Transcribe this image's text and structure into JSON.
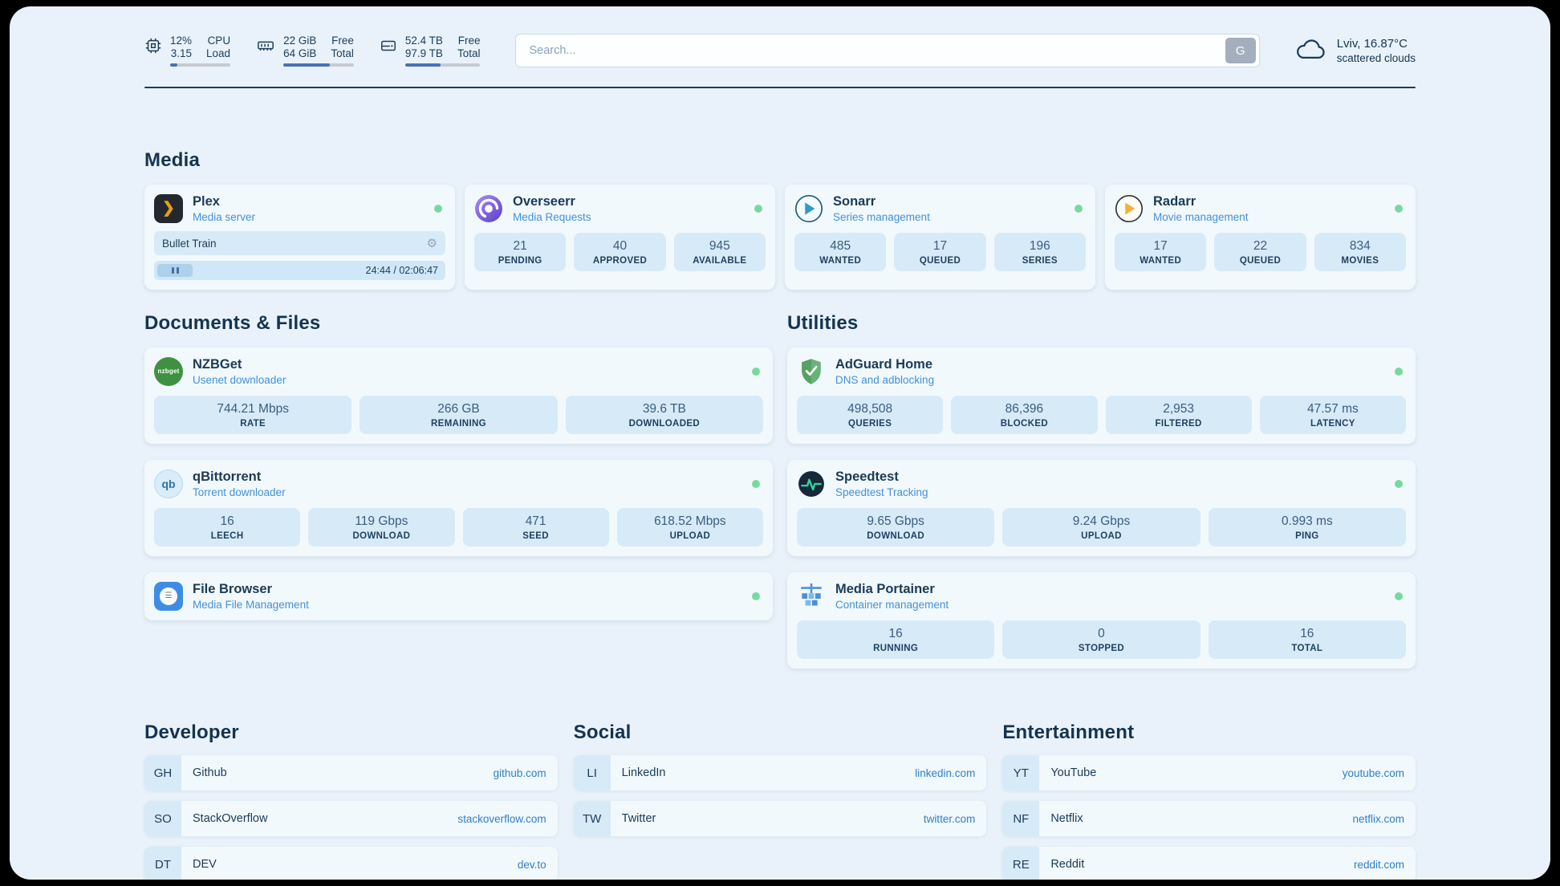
{
  "topbar": {
    "system": [
      {
        "icon": "cpu-icon",
        "rows": [
          {
            "value": "12%",
            "label": "CPU"
          },
          {
            "value": "3.15",
            "label": "Load"
          }
        ],
        "bar_percent": 12
      },
      {
        "icon": "memory-icon",
        "rows": [
          {
            "value": "22 GiB",
            "label": "Free"
          },
          {
            "value": "64 GiB",
            "label": "Total"
          }
        ],
        "bar_percent": 66
      },
      {
        "icon": "disk-icon",
        "rows": [
          {
            "value": "52.4 TB",
            "label": "Free"
          },
          {
            "value": "97.9 TB",
            "label": "Total"
          }
        ],
        "bar_percent": 47
      }
    ],
    "search": {
      "placeholder": "Search...",
      "button_label": "G"
    },
    "weather": {
      "icon": "cloud-icon",
      "location": "Lviv, 16.87°C",
      "condition": "scattered clouds"
    }
  },
  "groups": {
    "media": {
      "title": "Media",
      "cards": [
        {
          "app": "plex",
          "icon": "plex-icon",
          "title": "Plex",
          "subtitle": "Media server",
          "status": "online",
          "player": {
            "track": "Bullet Train",
            "time": "24:44 / 02:06:47"
          }
        },
        {
          "app": "overseerr",
          "icon": "overseerr-icon",
          "title": "Overseerr",
          "subtitle": "Media Requests",
          "status": "online",
          "stats": [
            {
              "value": "21",
              "label": "PENDING"
            },
            {
              "value": "40",
              "label": "APPROVED"
            },
            {
              "value": "945",
              "label": "AVAILABLE"
            }
          ]
        },
        {
          "app": "sonarr",
          "icon": "sonarr-icon",
          "title": "Sonarr",
          "subtitle": "Series management",
          "status": "online",
          "stats": [
            {
              "value": "485",
              "label": "WANTED"
            },
            {
              "value": "17",
              "label": "QUEUED"
            },
            {
              "value": "196",
              "label": "SERIES"
            }
          ]
        },
        {
          "app": "radarr",
          "icon": "radarr-icon",
          "title": "Radarr",
          "subtitle": "Movie management",
          "status": "online",
          "stats": [
            {
              "value": "17",
              "label": "WANTED"
            },
            {
              "value": "22",
              "label": "QUEUED"
            },
            {
              "value": "834",
              "label": "MOVIES"
            }
          ]
        }
      ]
    },
    "documents": {
      "title": "Documents & Files",
      "cards": [
        {
          "app": "nzbget",
          "icon": "nzbget-icon",
          "title": "NZBGet",
          "subtitle": "Usenet downloader",
          "status": "online",
          "stats": [
            {
              "value": "744.21 Mbps",
              "label": "RATE"
            },
            {
              "value": "266 GB",
              "label": "REMAINING"
            },
            {
              "value": "39.6 TB",
              "label": "DOWNLOADED"
            }
          ]
        },
        {
          "app": "qbittorrent",
          "icon": "qbittorrent-icon",
          "title": "qBittorrent",
          "subtitle": "Torrent downloader",
          "status": "online",
          "stats": [
            {
              "value": "16",
              "label": "LEECH"
            },
            {
              "value": "119 Gbps",
              "label": "DOWNLOAD"
            },
            {
              "value": "471",
              "label": "SEED"
            },
            {
              "value": "618.52 Mbps",
              "label": "UPLOAD"
            }
          ]
        },
        {
          "app": "filebrowser",
          "icon": "filebrowser-icon",
          "title": "File Browser",
          "subtitle": "Media File Management",
          "status": "online"
        }
      ]
    },
    "utilities": {
      "title": "Utilities",
      "cards": [
        {
          "app": "adguard",
          "icon": "adguard-icon",
          "title": "AdGuard Home",
          "subtitle": "DNS and adblocking",
          "status": "online",
          "stats": [
            {
              "value": "498,508",
              "label": "QUERIES"
            },
            {
              "value": "86,396",
              "label": "BLOCKED"
            },
            {
              "value": "2,953",
              "label": "FILTERED"
            },
            {
              "value": "47.57 ms",
              "label": "LATENCY"
            }
          ]
        },
        {
          "app": "speedtest",
          "icon": "speedtest-icon",
          "title": "Speedtest",
          "subtitle": "Speedtest Tracking",
          "status": "online",
          "stats": [
            {
              "value": "9.65 Gbps",
              "label": "DOWNLOAD"
            },
            {
              "value": "9.24 Gbps",
              "label": "UPLOAD"
            },
            {
              "value": "0.993 ms",
              "label": "PING"
            }
          ]
        },
        {
          "app": "portainer",
          "icon": "portainer-icon",
          "title": "Media Portainer",
          "subtitle": "Container management",
          "status": "online",
          "stats": [
            {
              "value": "16",
              "label": "RUNNING"
            },
            {
              "value": "0",
              "label": "STOPPED"
            },
            {
              "value": "16",
              "label": "TOTAL"
            }
          ]
        }
      ]
    }
  },
  "bookmarks": [
    {
      "title": "Developer",
      "items": [
        {
          "abbr": "GH",
          "name": "Github",
          "link": "github.com"
        },
        {
          "abbr": "SO",
          "name": "StackOverflow",
          "link": "stackoverflow.com"
        },
        {
          "abbr": "DT",
          "name": "DEV",
          "link": "dev.to"
        }
      ]
    },
    {
      "title": "Social",
      "items": [
        {
          "abbr": "LI",
          "name": "LinkedIn",
          "link": "linkedin.com"
        },
        {
          "abbr": "TW",
          "name": "Twitter",
          "link": "twitter.com"
        }
      ]
    },
    {
      "title": "Entertainment",
      "items": [
        {
          "abbr": "YT",
          "name": "YouTube",
          "link": "youtube.com"
        },
        {
          "abbr": "NF",
          "name": "Netflix",
          "link": "netflix.com"
        },
        {
          "abbr": "RE",
          "name": "Reddit",
          "link": "reddit.com"
        }
      ]
    }
  ],
  "colors": {
    "page_bg": "#e9f2fa",
    "card_bg": "#f2f9fd",
    "stat_bg": "#d7eaf8",
    "text_navy": "#16344f",
    "accent_blue": "#4291d8",
    "link_blue": "#2e7fc8",
    "status_online": "#78d9a0",
    "bar_fill": "#4a72b4"
  }
}
